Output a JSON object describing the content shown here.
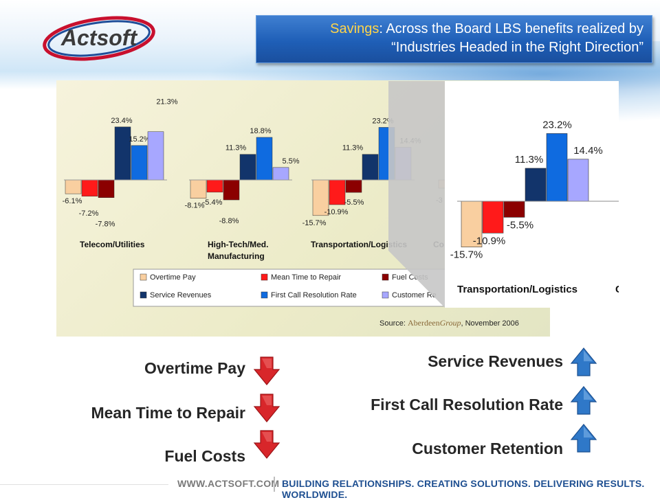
{
  "header": {
    "logo_text": "Actsoft",
    "title_highlight": "Savings",
    "title_line1_rest": ": Across the Board LBS benefits realized by",
    "title_line2": "“Industries Headed in the Right Direction”"
  },
  "chart_data": {
    "type": "bar",
    "categories": [
      "Telecom/Utilities",
      "High-Tech/Med. Manufacturing",
      "Transportation/Logistics"
    ],
    "series": [
      {
        "name": "Overtime Pay",
        "color": "#f9cfa0",
        "values": [
          -6.1,
          -8.1,
          -15.7
        ]
      },
      {
        "name": "Mean Time to Repair",
        "color": "#ff1a1a",
        "values": [
          -7.2,
          -5.4,
          -10.9
        ]
      },
      {
        "name": "Fuel Costs",
        "color": "#8b0000",
        "values": [
          -7.8,
          -8.8,
          -5.5
        ]
      },
      {
        "name": "Service Revenues",
        "color": "#12346b",
        "values": [
          23.4,
          11.3,
          11.3
        ]
      },
      {
        "name": "First Call Resolution Rate",
        "color": "#0f6be0",
        "values": [
          15.2,
          18.8,
          23.2
        ]
      },
      {
        "name": "Customer Retention",
        "color": "#a7a7ff",
        "values": [
          21.3,
          5.5,
          14.4
        ]
      }
    ],
    "value_labels": [
      [
        "-6.1%",
        "-7.2%",
        "-7.8%",
        "23.4%",
        "15.2%",
        "21.3%"
      ],
      [
        "-8.1%",
        "-5.4%",
        "-8.8%",
        "11.3%",
        "18.8%",
        "5.5%"
      ],
      [
        "-15.7%",
        "-10.9%",
        "-5.5%",
        "11.3%",
        "23.2%",
        "14.4%"
      ]
    ],
    "partial_labels": [
      "Co",
      "-3"
    ],
    "legend_labels": [
      "Overtime Pay",
      "Mean Time to Repair",
      "Fuel Costs",
      "Service Revenues",
      "First Call Resolution Rate",
      "Customer Re"
    ],
    "source_prefix": "Source: ",
    "source_brand": "Aberdeen",
    "source_brand_italic": "Group",
    "source_suffix": ", November 2006",
    "zoom_category": "Transportation/Logistics",
    "zoom_cut_label": "C",
    "grid": false,
    "legend_position": "bottom"
  },
  "summary": {
    "decreases": [
      "Overtime Pay",
      "Mean Time to Repair",
      "Fuel Costs"
    ],
    "increases": [
      "Service Revenues",
      "First Call Resolution Rate",
      "Customer Retention"
    ],
    "down_arrow_color": "#d8262a",
    "up_arrow_color": "#2f78c8"
  },
  "footer": {
    "url": "WWW.ACTSOFT.COM",
    "tagline": "BUILDING RELATIONSHIPS. CREATING SOLUTIONS. DELIVERING RESULTS. WORLDWIDE."
  }
}
